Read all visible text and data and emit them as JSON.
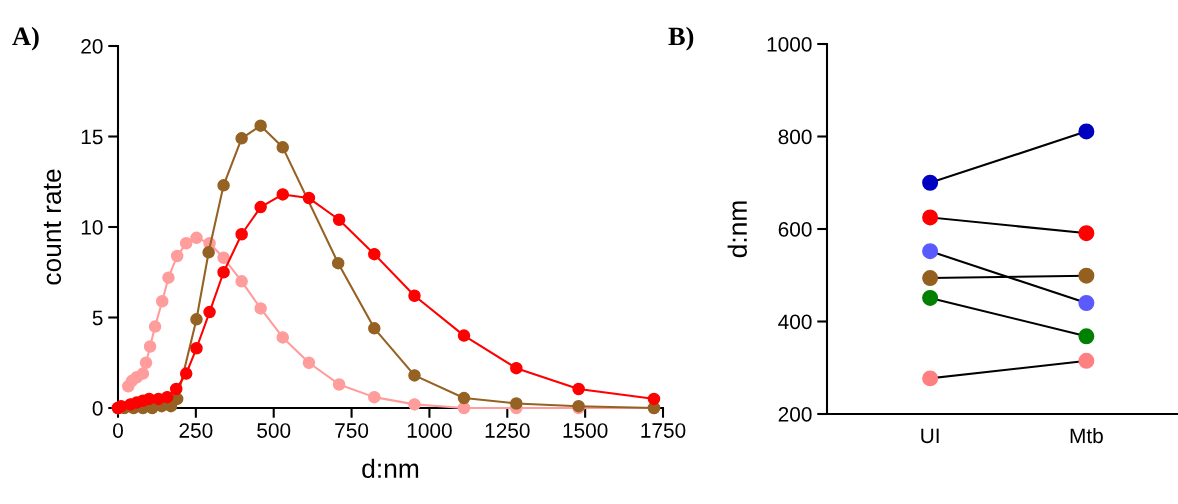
{
  "chart_data": [
    {
      "type": "line",
      "annotations": [
        "A)"
      ],
      "xlabel": "d:nm",
      "ylabel": "count rate",
      "xlim": [
        0,
        1750
      ],
      "xticks": [
        0,
        250,
        500,
        750,
        1000,
        1250,
        1500,
        1750
      ],
      "ylim": [
        0,
        20
      ],
      "yticks": [
        0,
        5,
        10,
        15,
        20
      ],
      "marker": "circle",
      "line_style": "solid",
      "grid": false,
      "legend": false,
      "series": [
        {
          "color": "#ff9c9c",
          "x": [
            0,
            23,
            33,
            45,
            60,
            80,
            90,
            103,
            119,
            142,
            162,
            190,
            219,
            252,
            294,
            339,
            397,
            458,
            529,
            613,
            710,
            823,
            952,
            1111,
            1279,
            1479,
            1721
          ],
          "values": [
            0,
            null,
            1.2,
            1.5,
            1.7,
            1.9,
            2.5,
            3.4,
            4.5,
            5.9,
            7.2,
            8.4,
            9.1,
            9.4,
            9.1,
            8.3,
            7.0,
            5.5,
            3.9,
            2.5,
            1.3,
            0.6,
            0.2,
            0,
            0,
            0,
            0
          ]
        },
        {
          "color": "#956223",
          "x": [
            0,
            20,
            50,
            80,
            110,
            140,
            170,
            190,
            252,
            291,
            339,
            397,
            458,
            529,
            707,
            823,
            952,
            1111,
            1279,
            1479,
            1721
          ],
          "values": [
            0,
            0,
            0,
            0,
            0,
            0.1,
            0.1,
            0.5,
            4.9,
            8.6,
            12.3,
            14.9,
            15.6,
            14.4,
            8.0,
            4.4,
            1.8,
            0.55,
            0.25,
            0.1,
            0
          ]
        },
        {
          "color": "#ff0000",
          "x": [
            0,
            10,
            40,
            60,
            80,
            100,
            130,
            158,
            187,
            219,
            252,
            294,
            339,
            397,
            458,
            529,
            613,
            710,
            823,
            952,
            1111,
            1279,
            1479,
            1721
          ],
          "values": [
            0,
            0.1,
            0.2,
            0.3,
            0.4,
            0.5,
            0.5,
            0.6,
            1.05,
            1.9,
            3.3,
            5.3,
            7.5,
            9.6,
            11.1,
            11.8,
            11.6,
            10.4,
            8.5,
            6.2,
            4.0,
            2.2,
            1.05,
            0.5
          ]
        }
      ]
    },
    {
      "type": "line",
      "annotations": [
        "B)"
      ],
      "ylabel": "d:nm",
      "categories": [
        "UI",
        "Mtb"
      ],
      "ylim": [
        200,
        1000
      ],
      "yticks": [
        200,
        400,
        600,
        800,
        1000
      ],
      "marker": "circle",
      "line_style": "solid",
      "grid": false,
      "legend": false,
      "series": [
        {
          "color": "#0000c0",
          "values": [
            700,
            811
          ]
        },
        {
          "color": "#ff0000",
          "values": [
            625,
            591
          ]
        },
        {
          "color": "#5a5aff",
          "values": [
            552,
            440
          ]
        },
        {
          "color": "#946020",
          "values": [
            494,
            499
          ]
        },
        {
          "color": "#008000",
          "values": [
            451,
            368
          ]
        },
        {
          "color": "#ff8080",
          "values": [
            277,
            315
          ]
        }
      ]
    }
  ]
}
